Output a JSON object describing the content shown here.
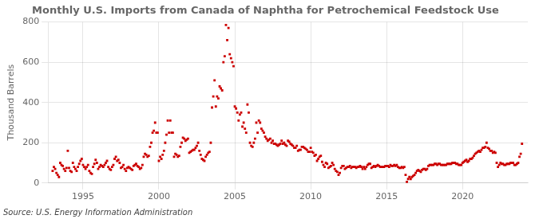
{
  "chart_data": {
    "type": "scatter",
    "title": "Monthly U.S. Imports from Canada of Naphtha for Petrochemical Feedstock Use",
    "ylabel": "Thousand Barrels",
    "annotations": [
      "Source: U.S. Energy Information Administration"
    ],
    "color": "#cc0000",
    "marker": "square",
    "grid": true,
    "xlim": [
      1992.7,
      2024.3
    ],
    "xticks": [
      1995,
      2000,
      2005,
      2010,
      2015,
      2020
    ],
    "ylim": [
      0,
      800
    ],
    "yticks": [
      0,
      200,
      400,
      600,
      800
    ],
    "x": [
      1993,
      1993.0833333333333,
      1993.1666666666667,
      1993.25,
      1993.3333333333333,
      1993.4166666666667,
      1993.5,
      1993.5833333333333,
      1993.6666666666667,
      1993.75,
      1993.8333333333333,
      1993.9166666666667,
      1994,
      1994.0833333333333,
      1994.1666666666667,
      1994.25,
      1994.3333333333333,
      1994.4166666666667,
      1994.5,
      1994.5833333333333,
      1994.6666666666667,
      1994.75,
      1994.8333333333333,
      1994.9166666666667,
      1995,
      1995.0833333333333,
      1995.1666666666667,
      1995.25,
      1995.3333333333333,
      1995.4166666666667,
      1995.5,
      1995.5833333333333,
      1995.6666666666667,
      1995.75,
      1995.8333333333333,
      1995.9166666666667,
      1996,
      1996.0833333333333,
      1996.1666666666667,
      1996.25,
      1996.3333333333333,
      1996.4166666666667,
      1996.5,
      1996.5833333333333,
      1996.6666666666667,
      1996.75,
      1996.8333333333333,
      1996.9166666666667,
      1997,
      1997.0833333333333,
      1997.1666666666667,
      1997.25,
      1997.3333333333333,
      1997.4166666666667,
      1997.5,
      1997.5833333333333,
      1997.6666666666667,
      1997.75,
      1997.8333333333333,
      1997.9166666666667,
      1998,
      1998.0833333333333,
      1998.1666666666667,
      1998.25,
      1998.3333333333333,
      1998.4166666666667,
      1998.5,
      1998.5833333333333,
      1998.6666666666667,
      1998.75,
      1998.8333333333333,
      1998.9166666666667,
      1999,
      1999.0833333333333,
      1999.1666666666667,
      1999.25,
      1999.3333333333333,
      1999.4166666666667,
      1999.5,
      1999.5833333333333,
      1999.6666666666667,
      1999.75,
      1999.8333333333333,
      1999.9166666666667,
      2000,
      2000.0833333333333,
      2000.1666666666667,
      2000.25,
      2000.3333333333333,
      2000.4166666666667,
      2000.5,
      2000.5833333333333,
      2000.6666666666667,
      2000.75,
      2000.8333333333333,
      2000.9166666666667,
      2001,
      2001.0833333333333,
      2001.1666666666667,
      2001.25,
      2001.3333333333333,
      2001.4166666666667,
      2001.5,
      2001.5833333333333,
      2001.6666666666667,
      2001.75,
      2001.8333333333333,
      2001.9166666666667,
      2002,
      2002.0833333333333,
      2002.1666666666667,
      2002.25,
      2002.3333333333333,
      2002.4166666666667,
      2002.5,
      2002.5833333333333,
      2002.6666666666667,
      2002.75,
      2002.8333333333333,
      2002.9166666666667,
      2003,
      2003.0833333333333,
      2003.1666666666667,
      2003.25,
      2003.3333333333333,
      2003.4166666666667,
      2003.5,
      2003.5833333333333,
      2003.6666666666667,
      2003.75,
      2003.8333333333333,
      2003.9166666666667,
      2004,
      2004.0833333333333,
      2004.1666666666667,
      2004.25,
      2004.3333333333333,
      2004.4166666666667,
      2004.5,
      2004.5833333333333,
      2004.6666666666667,
      2004.75,
      2004.8333333333333,
      2004.9166666666667,
      2005,
      2005.0833333333333,
      2005.1666666666667,
      2005.25,
      2005.3333333333333,
      2005.4166666666667,
      2005.5,
      2005.5833333333333,
      2005.6666666666667,
      2005.75,
      2005.8333333333333,
      2005.9166666666667,
      2006,
      2006.0833333333333,
      2006.1666666666667,
      2006.25,
      2006.3333333333333,
      2006.4166666666667,
      2006.5,
      2006.5833333333333,
      2006.6666666666667,
      2006.75,
      2006.8333333333333,
      2006.9166666666667,
      2007,
      2007.0833333333333,
      2007.1666666666667,
      2007.25,
      2007.3333333333333,
      2007.4166666666667,
      2007.5,
      2007.5833333333333,
      2007.6666666666667,
      2007.75,
      2007.8333333333333,
      2007.9166666666667,
      2008,
      2008.0833333333333,
      2008.1666666666667,
      2008.25,
      2008.3333333333333,
      2008.4166666666667,
      2008.5,
      2008.5833333333333,
      2008.6666666666667,
      2008.75,
      2008.8333333333333,
      2008.9166666666667,
      2009,
      2009.0833333333333,
      2009.1666666666667,
      2009.25,
      2009.3333333333333,
      2009.4166666666667,
      2009.5,
      2009.5833333333333,
      2009.6666666666667,
      2009.75,
      2009.8333333333333,
      2009.9166666666667,
      2010,
      2010.0833333333333,
      2010.1666666666667,
      2010.25,
      2010.3333333333333,
      2010.4166666666667,
      2010.5,
      2010.5833333333333,
      2010.6666666666667,
      2010.75,
      2010.8333333333333,
      2010.9166666666667,
      2011,
      2011.0833333333333,
      2011.1666666666667,
      2011.25,
      2011.3333333333333,
      2011.4166666666667,
      2011.5,
      2011.5833333333333,
      2011.6666666666667,
      2011.75,
      2011.8333333333333,
      2011.9166666666667,
      2012,
      2012.0833333333333,
      2012.1666666666667,
      2012.25,
      2012.3333333333333,
      2012.4166666666667,
      2012.5,
      2012.5833333333333,
      2012.6666666666667,
      2012.75,
      2012.8333333333333,
      2012.9166666666667,
      2013,
      2013.0833333333333,
      2013.1666666666667,
      2013.25,
      2013.3333333333333,
      2013.4166666666667,
      2013.5,
      2013.5833333333333,
      2013.6666666666667,
      2013.75,
      2013.8333333333333,
      2013.9166666666667,
      2014,
      2014.0833333333333,
      2014.1666666666667,
      2014.25,
      2014.3333333333333,
      2014.4166666666667,
      2014.5,
      2014.5833333333333,
      2014.6666666666667,
      2014.75,
      2014.8333333333333,
      2014.9166666666667,
      2015,
      2015.0833333333333,
      2015.1666666666667,
      2015.25,
      2015.3333333333333,
      2015.4166666666667,
      2015.5,
      2015.5833333333333,
      2015.6666666666667,
      2015.75,
      2015.8333333333333,
      2015.9166666666667,
      2016,
      2016.0833333333333,
      2016.1666666666667,
      2016.25,
      2016.3333333333333,
      2016.4166666666667,
      2016.5,
      2016.5833333333333,
      2016.6666666666667,
      2016.75,
      2016.8333333333333,
      2016.9166666666667,
      2017,
      2017.0833333333333,
      2017.1666666666667,
      2017.25,
      2017.3333333333333,
      2017.4166666666667,
      2017.5,
      2017.5833333333333,
      2017.6666666666667,
      2017.75,
      2017.8333333333333,
      2017.9166666666667,
      2018,
      2018.0833333333333,
      2018.1666666666667,
      2018.25,
      2018.3333333333333,
      2018.4166666666667,
      2018.5,
      2018.5833333333333,
      2018.6666666666667,
      2018.75,
      2018.8333333333333,
      2018.9166666666667,
      2019,
      2019.0833333333333,
      2019.1666666666667,
      2019.25,
      2019.3333333333333,
      2019.4166666666667,
      2019.5,
      2019.5833333333333,
      2019.6666666666667,
      2019.75,
      2019.8333333333333,
      2019.9166666666667,
      2020,
      2020.0833333333333,
      2020.1666666666667,
      2020.25,
      2020.3333333333333,
      2020.4166666666667,
      2020.5,
      2020.5833333333333,
      2020.6666666666667,
      2020.75,
      2020.8333333333333,
      2020.9166666666667,
      2021,
      2021.0833333333333,
      2021.1666666666667,
      2021.25,
      2021.3333333333333,
      2021.4166666666667,
      2021.5,
      2021.5833333333333,
      2021.6666666666667,
      2021.75,
      2021.8333333333333,
      2021.9166666666667,
      2022,
      2022.0833333333333,
      2022.1666666666667,
      2022.25,
      2022.3333333333333,
      2022.4166666666667,
      2022.5,
      2022.5833333333333,
      2022.6666666666667,
      2022.75,
      2022.8333333333333,
      2022.9166666666667,
      2023,
      2023.0833333333333,
      2023.1666666666667,
      2023.25,
      2023.3333333333333,
      2023.4166666666667,
      2023.5,
      2023.5833333333333,
      2023.6666666666667,
      2023.75,
      2023.8333333333333,
      2023.9166666666667
    ],
    "values": [
      60,
      80,
      70,
      50,
      40,
      30,
      100,
      90,
      85,
      70,
      60,
      75,
      160,
      75,
      60,
      55,
      100,
      80,
      70,
      60,
      80,
      95,
      110,
      120,
      90,
      80,
      70,
      80,
      90,
      60,
      50,
      45,
      80,
      95,
      115,
      100,
      70,
      80,
      90,
      85,
      80,
      90,
      100,
      110,
      80,
      70,
      65,
      80,
      90,
      120,
      130,
      110,
      115,
      100,
      75,
      80,
      90,
      70,
      60,
      75,
      80,
      75,
      70,
      65,
      85,
      90,
      95,
      85,
      80,
      70,
      75,
      90,
      130,
      145,
      140,
      130,
      135,
      180,
      200,
      250,
      260,
      300,
      250,
      250,
      110,
      130,
      120,
      140,
      160,
      200,
      240,
      310,
      250,
      310,
      250,
      250,
      130,
      145,
      140,
      130,
      135,
      180,
      200,
      225,
      220,
      210,
      215,
      220,
      150,
      155,
      160,
      165,
      165,
      175,
      185,
      200,
      160,
      140,
      120,
      115,
      110,
      130,
      140,
      150,
      155,
      200,
      375,
      430,
      510,
      380,
      430,
      420,
      480,
      470,
      460,
      600,
      630,
      785,
      710,
      770,
      640,
      620,
      600,
      580,
      380,
      370,
      350,
      310,
      340,
      350,
      280,
      300,
      270,
      250,
      390,
      350,
      200,
      185,
      180,
      200,
      220,
      300,
      250,
      310,
      300,
      270,
      260,
      250,
      230,
      220,
      210,
      215,
      220,
      200,
      210,
      195,
      195,
      190,
      185,
      190,
      195,
      210,
      195,
      200,
      190,
      185,
      210,
      205,
      195,
      190,
      185,
      175,
      175,
      185,
      160,
      165,
      165,
      180,
      180,
      175,
      170,
      165,
      155,
      155,
      175,
      155,
      150,
      135,
      140,
      110,
      120,
      130,
      135,
      105,
      90,
      80,
      100,
      95,
      75,
      80,
      85,
      100,
      90,
      70,
      60,
      55,
      40,
      50,
      75,
      85,
      85,
      70,
      75,
      80,
      80,
      85,
      75,
      80,
      80,
      80,
      75,
      80,
      80,
      85,
      80,
      70,
      80,
      70,
      80,
      90,
      95,
      95,
      75,
      80,
      85,
      80,
      85,
      90,
      85,
      80,
      80,
      80,
      80,
      85,
      85,
      85,
      80,
      90,
      85,
      85,
      90,
      85,
      90,
      80,
      75,
      75,
      80,
      75,
      80,
      40,
      5,
      20,
      30,
      20,
      30,
      35,
      40,
      50,
      60,
      65,
      60,
      55,
      65,
      70,
      70,
      65,
      70,
      85,
      90,
      90,
      90,
      90,
      95,
      95,
      90,
      95,
      95,
      90,
      90,
      90,
      90,
      90,
      95,
      95,
      95,
      95,
      100,
      100,
      100,
      95,
      95,
      90,
      90,
      90,
      100,
      105,
      110,
      115,
      105,
      110,
      120,
      120,
      125,
      135,
      145,
      150,
      155,
      160,
      155,
      165,
      175,
      175,
      180,
      200,
      175,
      170,
      160,
      160,
      150,
      155,
      150,
      100,
      80,
      90,
      100,
      95,
      95,
      90,
      90,
      95,
      95,
      95,
      100,
      100,
      100,
      90,
      90,
      95,
      100,
      130,
      145,
      195
    ]
  }
}
